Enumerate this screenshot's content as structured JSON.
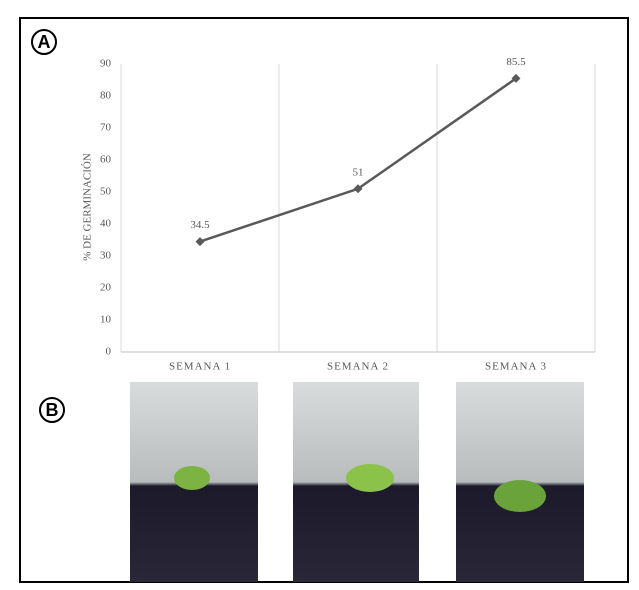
{
  "panel_labels": [
    "A",
    "B"
  ],
  "chart_data": {
    "type": "line",
    "y_label": "% DE GERMINACIÓN",
    "categories": [
      "SEMANA 1",
      "SEMANA 2",
      "SEMANA 3"
    ],
    "values": [
      34.5,
      51,
      85.5
    ],
    "color": "#595959",
    "ylim": [
      0,
      90
    ],
    "yticks": [
      0,
      10,
      20,
      30,
      40,
      50,
      60,
      70,
      80,
      90
    ],
    "grid": true
  }
}
